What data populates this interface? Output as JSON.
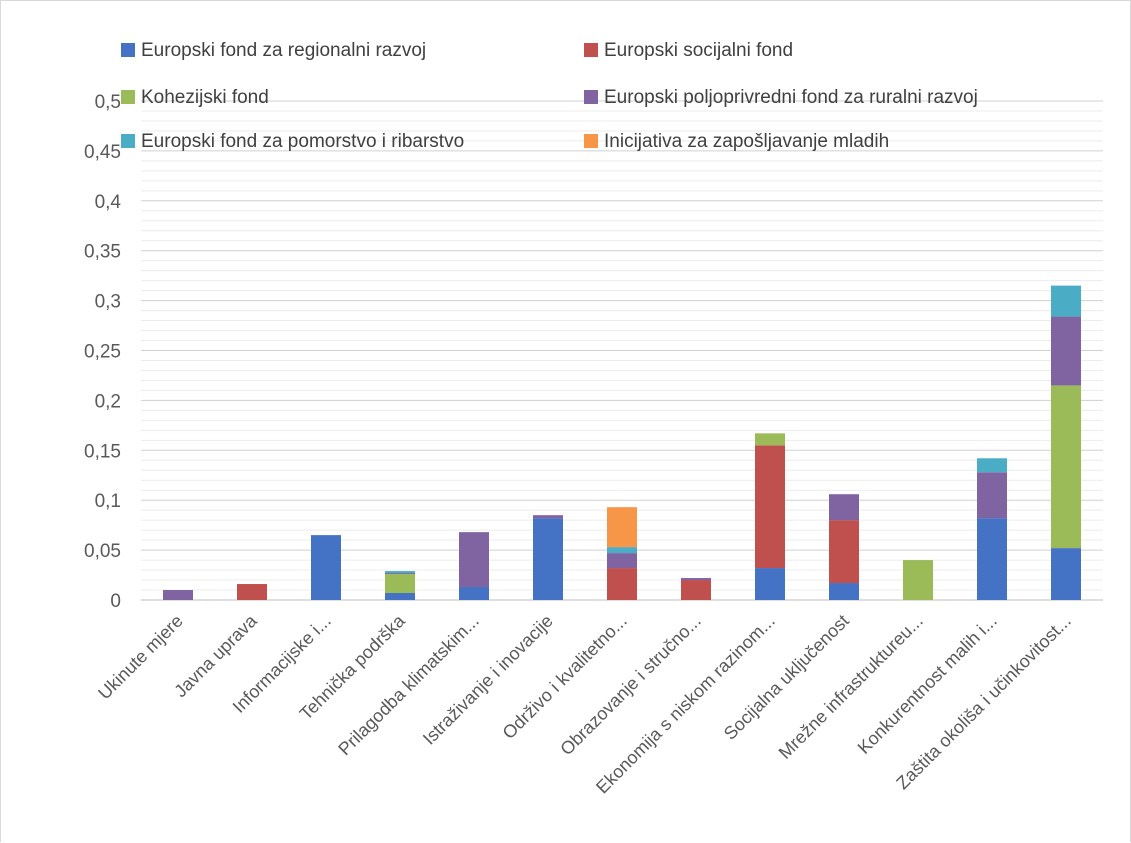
{
  "chart_data": {
    "type": "bar",
    "stacked": true,
    "title": "",
    "xlabel": "",
    "ylabel": "",
    "ylim": [
      0,
      0.5
    ],
    "y_ticks": [
      "0",
      "0,05",
      "0,1",
      "0,15",
      "0,2",
      "0,25",
      "0,3",
      "0,35",
      "0,4",
      "0,45",
      "0,5"
    ],
    "grid": true,
    "legend_position": "top",
    "categories": [
      "Ukinute mjere",
      "Javna uprava",
      "Informacijske i...",
      "Tehnička podrška",
      "Prilagodba klimatskim...",
      "Istraživanje i inovacije",
      "Održivo i kvalitetno...",
      "Obrazovanje i stručno...",
      "Ekonomija s niskom razinom...",
      "Socijalna uključenost",
      "Mrežne infrastruktureu...",
      "Konkurentnost malih i...",
      "Zaštita okoliša i učinkovitost..."
    ],
    "series": [
      {
        "name": "Europski fond za regionalni razvoj",
        "color": "#4472c4",
        "values": [
          0,
          0,
          0.065,
          0.007,
          0.013,
          0.082,
          0,
          0,
          0.032,
          0.017,
          0,
          0.082,
          0.052
        ]
      },
      {
        "name": "Europski socijalni fond",
        "color": "#c0504d",
        "values": [
          0,
          0.016,
          0,
          0,
          0,
          0,
          0.032,
          0.02,
          0.123,
          0.063,
          0,
          0,
          0
        ]
      },
      {
        "name": "Kohezijski fond",
        "color": "#9bbb59",
        "values": [
          0,
          0,
          0,
          0.019,
          0,
          0,
          0,
          0,
          0.012,
          0,
          0.04,
          0,
          0.163
        ]
      },
      {
        "name": "Europski poljoprivredni fond za ruralni razvoj",
        "color": "#8064a2",
        "values": [
          0.01,
          0,
          0,
          0.001,
          0.055,
          0.003,
          0.015,
          0.002,
          0,
          0.026,
          0,
          0.046,
          0.069
        ]
      },
      {
        "name": "Europski fond za pomorstvo i ribarstvo",
        "color": "#4bacc6",
        "values": [
          0,
          0,
          0,
          0.002,
          0,
          0,
          0.006,
          0,
          0,
          0,
          0,
          0.014,
          0.031
        ]
      },
      {
        "name": "Inicijativa za zapošljavanje mladih",
        "color": "#f79646",
        "values": [
          0,
          0,
          0,
          0,
          0,
          0,
          0.04,
          0,
          0,
          0,
          0,
          0,
          0
        ]
      }
    ]
  }
}
